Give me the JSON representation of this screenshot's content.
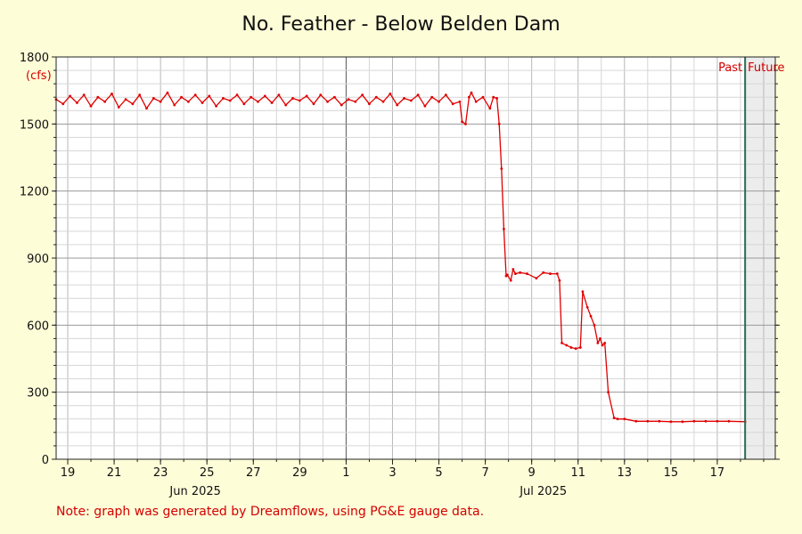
{
  "chart_data": {
    "type": "line",
    "title": "No. Feather - Below Belden Dam",
    "ylabel_unit": "(cfs)",
    "ylim": [
      0,
      1800
    ],
    "y_ticks": [
      "0",
      "300",
      "600",
      "900",
      "1200",
      "1500",
      "1800"
    ],
    "x_range_day": [
      18.5,
      49.5
    ],
    "x_ticks": [
      {
        "day": 19,
        "label": "19"
      },
      {
        "day": 21,
        "label": "21"
      },
      {
        "day": 23,
        "label": "23"
      },
      {
        "day": 25,
        "label": "25"
      },
      {
        "day": 27,
        "label": "27"
      },
      {
        "day": 29,
        "label": "29"
      },
      {
        "day": 31,
        "label": "1"
      },
      {
        "day": 33,
        "label": "3"
      },
      {
        "day": 35,
        "label": "5"
      },
      {
        "day": 37,
        "label": "7"
      },
      {
        "day": 39,
        "label": "9"
      },
      {
        "day": 41,
        "label": "11"
      },
      {
        "day": 43,
        "label": "13"
      },
      {
        "day": 45,
        "label": "15"
      },
      {
        "day": 47,
        "label": "17"
      }
    ],
    "month_labels": [
      {
        "day": 24.5,
        "label": "Jun 2025"
      },
      {
        "day": 39.5,
        "label": "Jul 2025"
      }
    ],
    "month_boundary_day": 31,
    "now_day": 48.2,
    "past_label": "Past",
    "future_label": "Future",
    "grid": true,
    "series": [
      {
        "color": "#e00000",
        "x": [
          18.5,
          18.8,
          19.1,
          19.4,
          19.7,
          20.0,
          20.3,
          20.6,
          20.9,
          21.2,
          21.5,
          21.8,
          22.1,
          22.4,
          22.7,
          23.0,
          23.3,
          23.6,
          23.9,
          24.2,
          24.5,
          24.8,
          25.1,
          25.4,
          25.7,
          26.0,
          26.3,
          26.6,
          26.9,
          27.2,
          27.5,
          27.8,
          28.1,
          28.4,
          28.7,
          29.0,
          29.3,
          29.6,
          29.9,
          30.2,
          30.5,
          30.8,
          31.1,
          31.4,
          31.7,
          32.0,
          32.3,
          32.6,
          32.9,
          33.2,
          33.5,
          33.8,
          34.1,
          34.4,
          34.7,
          35.0,
          35.3,
          35.6,
          35.9,
          36.0,
          36.15,
          36.3,
          36.4,
          36.6,
          36.9,
          37.2,
          37.35,
          37.5,
          37.6,
          37.7,
          37.8,
          37.9,
          37.95,
          38.1,
          38.2,
          38.3,
          38.5,
          38.8,
          39.2,
          39.5,
          39.8,
          40.1,
          40.2,
          40.3,
          40.5,
          40.7,
          40.9,
          41.1,
          41.2,
          41.4,
          41.55,
          41.7,
          41.85,
          41.95,
          42.05,
          42.15,
          42.3,
          42.55,
          42.7,
          43.0,
          43.5,
          44.0,
          44.5,
          45.0,
          45.5,
          46.0,
          46.5,
          47.0,
          47.5,
          48.2
        ],
        "y": [
          1610,
          1590,
          1625,
          1595,
          1630,
          1580,
          1620,
          1600,
          1635,
          1575,
          1610,
          1590,
          1630,
          1570,
          1615,
          1600,
          1640,
          1585,
          1620,
          1600,
          1630,
          1595,
          1625,
          1580,
          1615,
          1605,
          1630,
          1590,
          1620,
          1600,
          1625,
          1595,
          1630,
          1585,
          1615,
          1605,
          1625,
          1590,
          1630,
          1600,
          1620,
          1585,
          1610,
          1600,
          1630,
          1590,
          1620,
          1600,
          1635,
          1585,
          1615,
          1605,
          1630,
          1580,
          1620,
          1600,
          1630,
          1590,
          1600,
          1510,
          1500,
          1620,
          1640,
          1600,
          1620,
          1570,
          1620,
          1615,
          1500,
          1300,
          1030,
          820,
          825,
          800,
          850,
          830,
          835,
          830,
          810,
          835,
          830,
          830,
          800,
          520,
          510,
          500,
          495,
          500,
          750,
          680,
          640,
          600,
          520,
          540,
          510,
          520,
          300,
          185,
          180,
          180,
          170,
          170,
          170,
          168,
          168,
          170,
          170,
          170,
          170,
          168
        ]
      }
    ]
  },
  "note": "Note: graph was generated by Dreamflows, using PG&E gauge data."
}
